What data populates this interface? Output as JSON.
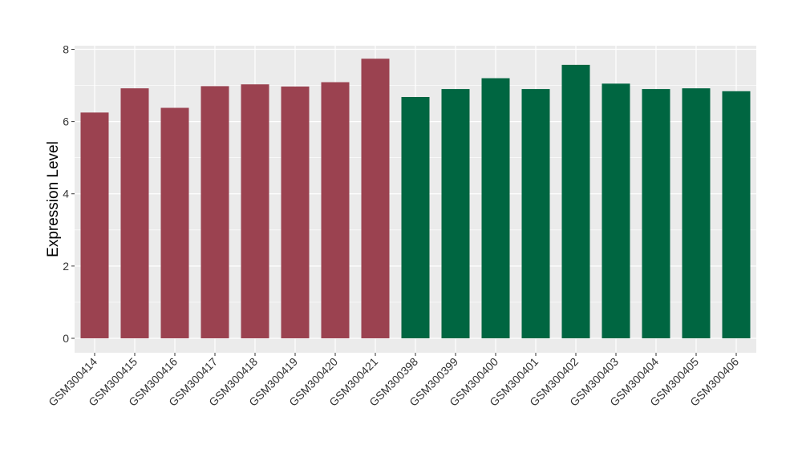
{
  "chart_data": {
    "type": "bar",
    "ylabel": "Expression Level",
    "xlabel": "",
    "ylim": [
      -0.4,
      8.1
    ],
    "yticks": [
      0,
      2,
      4,
      6,
      8
    ],
    "grid": true,
    "categories": [
      "GSM300414",
      "GSM300415",
      "GSM300416",
      "GSM300417",
      "GSM300418",
      "GSM300419",
      "GSM300420",
      "GSM300421",
      "GSM300398",
      "GSM300399",
      "GSM300400",
      "GSM300401",
      "GSM300402",
      "GSM300403",
      "GSM300404",
      "GSM300405",
      "GSM300406"
    ],
    "values": [
      6.25,
      6.92,
      6.38,
      6.98,
      7.03,
      6.97,
      7.09,
      7.74,
      6.68,
      6.9,
      7.2,
      6.9,
      7.57,
      7.05,
      6.9,
      6.92,
      6.84
    ],
    "bar_colors": [
      "#9b4250",
      "#9b4250",
      "#9b4250",
      "#9b4250",
      "#9b4250",
      "#9b4250",
      "#9b4250",
      "#9b4250",
      "#006641",
      "#006641",
      "#006641",
      "#006641",
      "#006641",
      "#006641",
      "#006641",
      "#006641",
      "#006641"
    ],
    "panel_background": "#ebebeb",
    "grid_color": "#ffffff"
  }
}
